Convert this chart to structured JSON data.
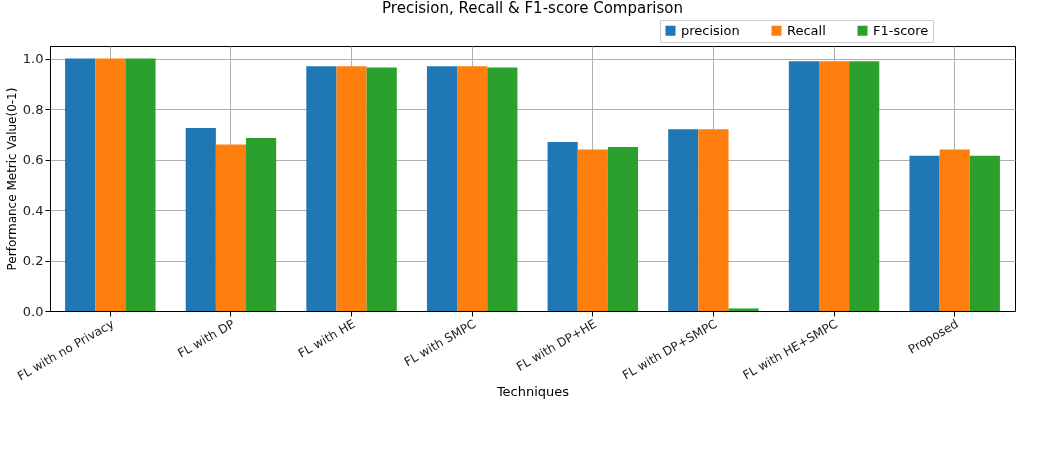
{
  "chart_data": {
    "type": "bar",
    "title": "Precision, Recall & F1-score Comparison",
    "xlabel": "Techniques",
    "ylabel": "Performance Metric Value(0-1)",
    "categories": [
      "FL with no Privacy",
      "FL with DP",
      "FL with HE",
      "FL with SMPC",
      "FL with DP+HE",
      "FL with DP+SMPC",
      "FL with HE+SMPC",
      "Proposed"
    ],
    "series": [
      {
        "name": "precision",
        "color": "#1f77b4",
        "values": [
          1.0,
          0.725,
          0.97,
          0.97,
          0.67,
          0.72,
          0.99,
          0.615
        ]
      },
      {
        "name": "Recall",
        "color": "#ff7f0e",
        "values": [
          1.0,
          0.66,
          0.97,
          0.97,
          0.64,
          0.72,
          0.99,
          0.64
        ]
      },
      {
        "name": "F1-score",
        "color": "#2ca02c",
        "values": [
          1.0,
          0.685,
          0.965,
          0.965,
          0.65,
          0.01,
          0.99,
          0.615
        ]
      }
    ],
    "ylim": [
      0,
      1.05
    ],
    "yticks": [
      {
        "value": 0,
        "label": "0.0"
      },
      0.2,
      0.4,
      0.6,
      0.8,
      {
        "value": 1,
        "label": "1.0"
      }
    ],
    "grid": true,
    "legend": "top right"
  }
}
